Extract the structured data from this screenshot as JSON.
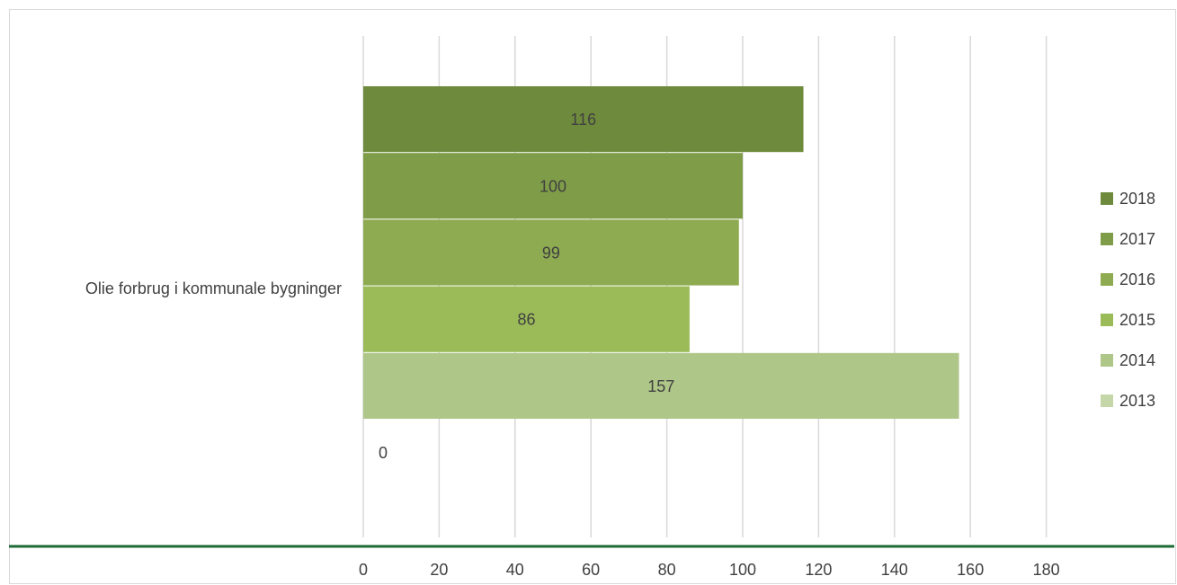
{
  "chart_data": {
    "type": "bar",
    "orientation": "horizontal",
    "category": "Olie forbrug i kommunale bygninger",
    "series": [
      {
        "name": "2018",
        "value": 116,
        "color": "#6e8b3d"
      },
      {
        "name": "2017",
        "value": 100,
        "color": "#7f9d48"
      },
      {
        "name": "2016",
        "value": 99,
        "color": "#8fab52"
      },
      {
        "name": "2015",
        "value": 86,
        "color": "#9bbb59"
      },
      {
        "name": "2014",
        "value": 157,
        "color": "#afc689"
      },
      {
        "name": "2013",
        "value": 0,
        "color": "#c5d6a8"
      }
    ],
    "xlim": [
      0,
      180
    ],
    "xticks": [
      "0",
      "20",
      "40",
      "60",
      "80",
      "100",
      "120",
      "140",
      "160",
      "180"
    ],
    "gridlines": true,
    "legend_position": "right",
    "axis_line_color": "#1e6b35"
  }
}
